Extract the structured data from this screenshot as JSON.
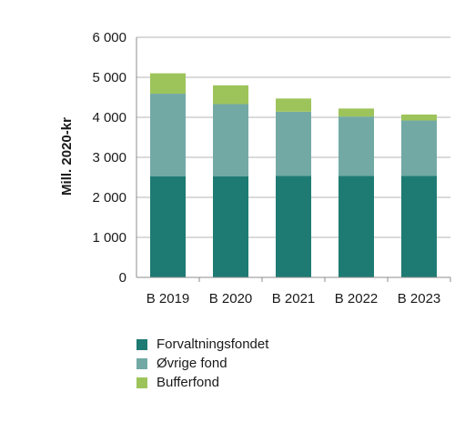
{
  "chart_data": {
    "type": "bar",
    "stacked": true,
    "title": "",
    "xlabel": "",
    "ylabel": "Mill. 2020-kr",
    "categories": [
      "B 2019",
      "B 2020",
      "B 2021",
      "B 2022",
      "B 2023"
    ],
    "ylim": [
      0,
      6000
    ],
    "yticks": [
      0,
      1000,
      2000,
      3000,
      4000,
      5000,
      6000
    ],
    "ytick_labels": [
      "0",
      "1 000",
      "2 000",
      "3 000",
      "4 000",
      "5 000",
      "6 000"
    ],
    "grid": true,
    "legend_position": "bottom-left",
    "series": [
      {
        "name": "Forvaltningsfondet",
        "color": "#1e7b73",
        "values": [
          2530,
          2530,
          2540,
          2540,
          2540
        ]
      },
      {
        "name": "Øvrige fond",
        "color": "#72a9a5",
        "values": [
          2060,
          1800,
          1600,
          1480,
          1380
        ]
      },
      {
        "name": "Bufferfond",
        "color": "#9dc45b",
        "values": [
          510,
          470,
          330,
          200,
          150
        ]
      }
    ]
  }
}
